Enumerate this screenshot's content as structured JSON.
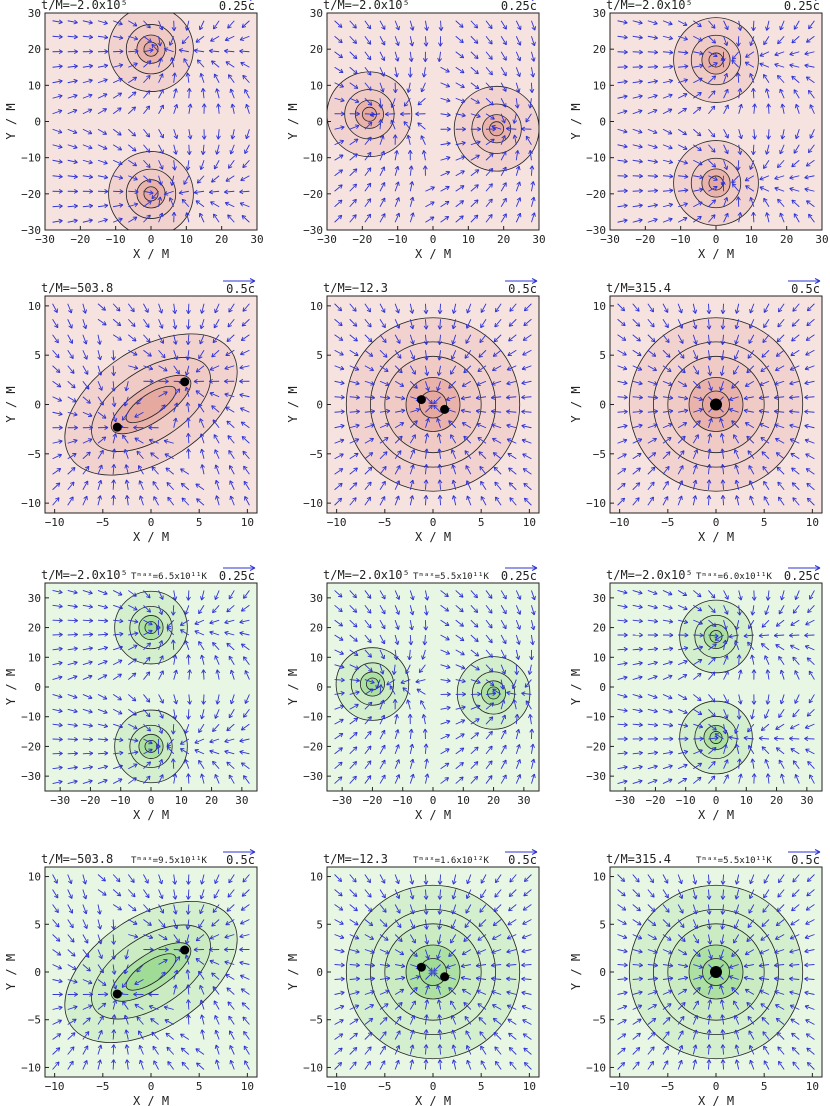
{
  "figure": {
    "axis_label_x": "X / M",
    "axis_label_y": "Y / M",
    "colors": {
      "red_bg": "#f6e2df",
      "red_mid": "#efc5bf",
      "red_deep": "#e3a197",
      "green_bg": "#e8f7e4",
      "green_mid": "#c2eab9",
      "green_deep": "#96d98a",
      "arrow": "#2e33d6",
      "contour": "#222222"
    }
  },
  "chart_data": [
    {
      "type": "vector-contour",
      "title": "t/M=−2.0x10⁵",
      "tmax": "",
      "scale_label": "0.25c",
      "theme": "red",
      "xlim": [
        -30,
        30
      ],
      "ylim": [
        -30,
        30
      ],
      "xticks": [
        "−30",
        "−20",
        "−10",
        "0",
        "10",
        "20",
        "30"
      ],
      "yticks": [
        "30",
        "20",
        "10",
        "0",
        "−10",
        "−20",
        "−30"
      ],
      "xlabel": "X / M",
      "ylabel": "Y / M",
      "sources": [
        [
          0,
          20
        ],
        [
          0,
          -20
        ]
      ],
      "holes": []
    },
    {
      "type": "vector-contour",
      "title": "t/M=−2.0x10⁵",
      "tmax": "",
      "scale_label": "0.25c",
      "theme": "red",
      "xlim": [
        -30,
        30
      ],
      "ylim": [
        -30,
        30
      ],
      "xticks": [
        "−30",
        "−20",
        "−10",
        "0",
        "10",
        "20",
        "30"
      ],
      "yticks": [
        "30",
        "20",
        "10",
        "0",
        "−10",
        "−20",
        "−30"
      ],
      "xlabel": "X / M",
      "ylabel": "Y / M",
      "sources": [
        [
          -18,
          2
        ],
        [
          18,
          -2
        ]
      ],
      "holes": []
    },
    {
      "type": "vector-contour",
      "title": "t/M=−2.0x10⁵",
      "tmax": "",
      "scale_label": "0.25c",
      "theme": "red",
      "xlim": [
        -30,
        30
      ],
      "ylim": [
        -30,
        30
      ],
      "xticks": [
        "−30",
        "−20",
        "−10",
        "0",
        "10",
        "20",
        "30"
      ],
      "yticks": [
        "30",
        "20",
        "10",
        "0",
        "−10",
        "−20",
        "−30"
      ],
      "xlabel": "X / M",
      "ylabel": "Y / M",
      "sources": [
        [
          0,
          17
        ],
        [
          0,
          -17
        ]
      ],
      "holes": []
    },
    {
      "type": "vector-contour",
      "title": "t/M=−503.8",
      "tmax": "",
      "scale_label": "0.5c",
      "theme": "red",
      "xlim": [
        -11,
        11
      ],
      "ylim": [
        -11,
        11
      ],
      "xticks": [
        "−10",
        "−5",
        "0",
        "5",
        "10"
      ],
      "yticks": [
        "10",
        "5",
        "0",
        "−5",
        "−10"
      ],
      "xlabel": "X / M",
      "ylabel": "Y / M",
      "sources": [
        [
          3.5,
          2.3
        ],
        [
          -3.5,
          -2.3
        ]
      ],
      "holes": [
        [
          3.5,
          2.3
        ],
        [
          -3.5,
          -2.3
        ]
      ]
    },
    {
      "type": "vector-contour",
      "title": "t/M=−12.3",
      "tmax": "",
      "scale_label": "0.5c",
      "theme": "red",
      "xlim": [
        -11,
        11
      ],
      "ylim": [
        -11,
        11
      ],
      "xticks": [
        "−10",
        "−5",
        "0",
        "5",
        "10"
      ],
      "yticks": [
        "10",
        "5",
        "0",
        "−5",
        "−10"
      ],
      "xlabel": "X / M",
      "ylabel": "Y / M",
      "sources": [
        [
          0,
          0
        ]
      ],
      "holes": [
        [
          -1.2,
          0.5
        ],
        [
          1.2,
          -0.5
        ]
      ]
    },
    {
      "type": "vector-contour",
      "title": "t/M=315.4",
      "tmax": "",
      "scale_label": "0.5c",
      "theme": "red",
      "xlim": [
        -11,
        11
      ],
      "ylim": [
        -11,
        11
      ],
      "xticks": [
        "−10",
        "−5",
        "0",
        "5",
        "10"
      ],
      "yticks": [
        "10",
        "5",
        "0",
        "−5",
        "−10"
      ],
      "xlabel": "X / M",
      "ylabel": "Y / M",
      "sources": [
        [
          0,
          0
        ]
      ],
      "holes": [
        [
          0,
          0
        ]
      ]
    },
    {
      "type": "vector-contour",
      "title": "t/M=−2.0x10⁵",
      "tmax": "Tᵐᵃˣ=6.5x10¹¹K",
      "scale_label": "0.25c",
      "theme": "green",
      "xlim": [
        -35,
        35
      ],
      "ylim": [
        -35,
        35
      ],
      "xticks": [
        "−30",
        "−20",
        "−10",
        "0",
        "10",
        "20",
        "30"
      ],
      "yticks": [
        "30",
        "20",
        "10",
        "0",
        "−10",
        "−20",
        "−30"
      ],
      "xlabel": "X / M",
      "ylabel": "Y / M",
      "sources": [
        [
          0,
          20
        ],
        [
          0,
          -20
        ]
      ],
      "holes": []
    },
    {
      "type": "vector-contour",
      "title": "t/M=−2.0x10⁵",
      "tmax": "Tᵐᵃˣ=5.5x10¹¹K",
      "scale_label": "0.25c",
      "theme": "green",
      "xlim": [
        -35,
        35
      ],
      "ylim": [
        -35,
        35
      ],
      "xticks": [
        "−30",
        "−20",
        "−10",
        "0",
        "10",
        "20",
        "30"
      ],
      "yticks": [
        "30",
        "20",
        "10",
        "0",
        "−10",
        "−20",
        "−30"
      ],
      "xlabel": "X / M",
      "ylabel": "Y / M",
      "sources": [
        [
          -20,
          1
        ],
        [
          20,
          -2
        ]
      ],
      "holes": []
    },
    {
      "type": "vector-contour",
      "title": "t/M=−2.0x10⁵",
      "tmax": "Tᵐᵃˣ=6.0x10¹¹K",
      "scale_label": "0.25c",
      "theme": "green",
      "xlim": [
        -35,
        35
      ],
      "ylim": [
        -35,
        35
      ],
      "xticks": [
        "−30",
        "−20",
        "−10",
        "0",
        "10",
        "20",
        "30"
      ],
      "yticks": [
        "30",
        "20",
        "10",
        "0",
        "−10",
        "−20",
        "−30"
      ],
      "xlabel": "X / M",
      "ylabel": "Y / M",
      "sources": [
        [
          0,
          17
        ],
        [
          0,
          -17
        ]
      ],
      "holes": []
    },
    {
      "type": "vector-contour",
      "title": "t/M=−503.8",
      "tmax": "Tᵐᵃˣ=9.5x10¹¹K",
      "scale_label": "0.5c",
      "theme": "green",
      "xlim": [
        -11,
        11
      ],
      "ylim": [
        -11,
        11
      ],
      "xticks": [
        "−10",
        "−5",
        "0",
        "5",
        "10"
      ],
      "yticks": [
        "10",
        "5",
        "0",
        "−5",
        "−10"
      ],
      "xlabel": "X / M",
      "ylabel": "Y / M",
      "sources": [
        [
          3.5,
          2.3
        ],
        [
          -3.5,
          -2.3
        ]
      ],
      "holes": [
        [
          3.5,
          2.3
        ],
        [
          -3.5,
          -2.3
        ]
      ]
    },
    {
      "type": "vector-contour",
      "title": "t/M=−12.3",
      "tmax": "Tᵐᵃˣ=1.6x10¹²K",
      "scale_label": "0.5c",
      "theme": "green",
      "xlim": [
        -11,
        11
      ],
      "ylim": [
        -11,
        11
      ],
      "xticks": [
        "−10",
        "−5",
        "0",
        "5",
        "10"
      ],
      "yticks": [
        "10",
        "5",
        "0",
        "−5",
        "−10"
      ],
      "xlabel": "X / M",
      "ylabel": "Y / M",
      "sources": [
        [
          0,
          0
        ]
      ],
      "holes": [
        [
          -1.2,
          0.5
        ],
        [
          1.2,
          -0.5
        ]
      ]
    },
    {
      "type": "vector-contour",
      "title": "t/M=315.4",
      "tmax": "Tᵐᵃˣ=5.5x10¹¹K",
      "scale_label": "0.5c",
      "theme": "green",
      "xlim": [
        -11,
        11
      ],
      "ylim": [
        -11,
        11
      ],
      "xticks": [
        "−10",
        "−5",
        "0",
        "5",
        "10"
      ],
      "yticks": [
        "10",
        "5",
        "0",
        "−5",
        "−10"
      ],
      "xlabel": "X / M",
      "ylabel": "Y / M",
      "sources": [
        [
          0,
          0
        ]
      ],
      "holes": [
        [
          0,
          0
        ]
      ]
    }
  ]
}
